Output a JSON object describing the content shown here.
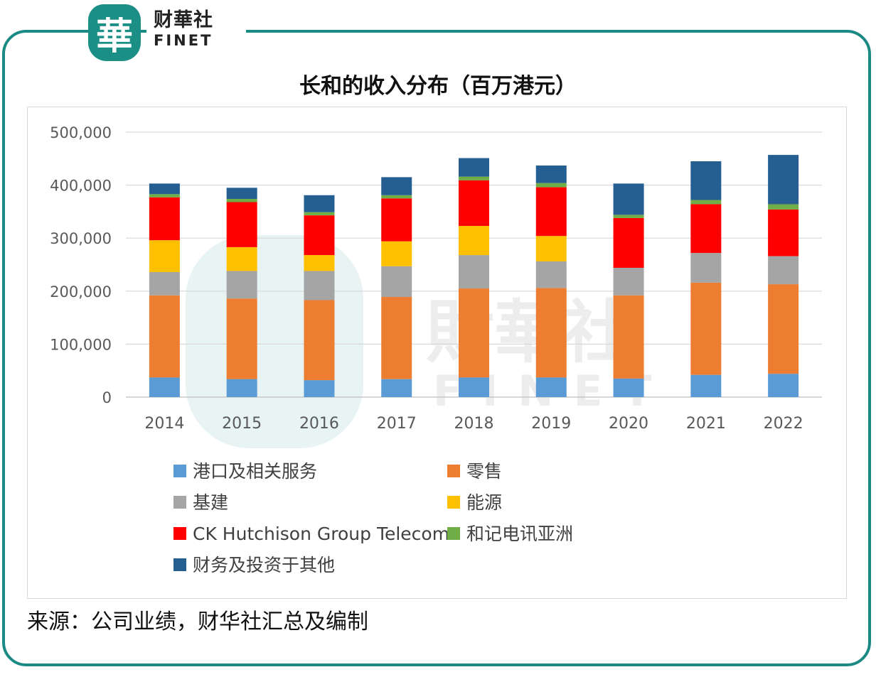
{
  "brand": {
    "logo_glyph": "華",
    "name_cn": "财華社",
    "name_en": "FINET",
    "color": "#1b8e86",
    "watermark_cn": "財華社",
    "watermark_en": "FINET"
  },
  "source_note": "来源：公司业绩，财华社汇总及编制",
  "chart_data": {
    "type": "bar",
    "stacked": true,
    "title": "长和的收入分布（百万港元）",
    "categories": [
      "2014",
      "2015",
      "2016",
      "2017",
      "2018",
      "2019",
      "2020",
      "2021",
      "2022"
    ],
    "ylim": [
      0,
      500000
    ],
    "yticks": [
      0,
      100000,
      200000,
      300000,
      400000,
      500000
    ],
    "ytick_labels": [
      "0",
      "100,000",
      "200,000",
      "300,000",
      "400,000",
      "500,000"
    ],
    "grid": true,
    "legend_position": "bottom",
    "series": [
      {
        "name": "港口及相关服务",
        "color": "#5b9bd5",
        "values": [
          37000,
          34000,
          32000,
          34000,
          37000,
          37000,
          35000,
          42000,
          44000
        ]
      },
      {
        "name": "零售",
        "color": "#ed7d31",
        "values": [
          155000,
          152000,
          151000,
          155000,
          168000,
          169000,
          157000,
          174000,
          169000
        ]
      },
      {
        "name": "基建",
        "color": "#a5a5a5",
        "values": [
          44000,
          52000,
          55000,
          58000,
          63000,
          50000,
          52000,
          56000,
          53000
        ]
      },
      {
        "name": "能源",
        "color": "#ffc000",
        "values": [
          60000,
          45000,
          30000,
          47000,
          55000,
          48000,
          0,
          0,
          0
        ]
      },
      {
        "name": "CK Hutchison Group Telecom",
        "color": "#ff0000",
        "values": [
          81000,
          85000,
          75000,
          81000,
          86000,
          92000,
          94000,
          92000,
          88000
        ]
      },
      {
        "name": "和记电讯亚洲",
        "color": "#70ad47",
        "values": [
          6000,
          6000,
          6000,
          6000,
          7000,
          8000,
          6000,
          8000,
          10000
        ]
      },
      {
        "name": "财务及投资于其他",
        "color": "#255e91",
        "values": [
          20000,
          21000,
          32000,
          34000,
          35000,
          33000,
          59000,
          73000,
          93000
        ]
      }
    ]
  }
}
